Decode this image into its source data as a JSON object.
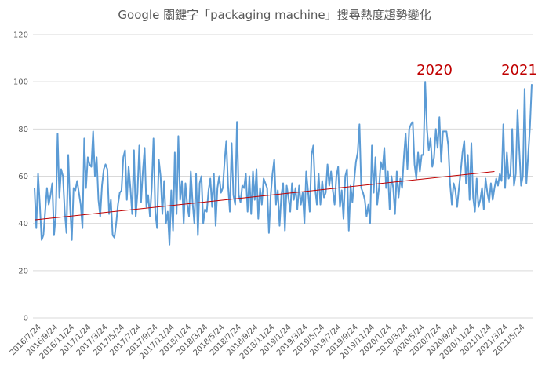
{
  "chart_data": {
    "type": "line",
    "title": "Google 關鍵字「packaging machine」搜尋熱度趨勢變化",
    "xlabel": "",
    "ylabel": "",
    "ylim": [
      0,
      120
    ],
    "yticks": [
      0,
      20,
      40,
      60,
      80,
      100,
      120
    ],
    "grid": true,
    "legend": "none",
    "colors": {
      "series": "#5b9bd5",
      "trend": "#c00000",
      "annotation": "#c00000"
    },
    "x_tick_labels": [
      "2016/7/24",
      "2016/9/24",
      "2016/11/24",
      "2017/1/24",
      "2017/3/24",
      "2017/5/24",
      "2017/7/24",
      "2017/9/24",
      "2017/11/24",
      "2018/1/24",
      "2018/3/24",
      "2018/5/24",
      "2018/7/24",
      "2018/9/24",
      "2018/11/24",
      "2019/1/24",
      "2019/3/24",
      "2019/5/24",
      "2019/7/24",
      "2019/9/24",
      "2019/11/24",
      "2020/1/24",
      "2020/3/24",
      "2020/5/24",
      "2020/7/24",
      "2020/9/24",
      "2020/11/24",
      "2021/1/24",
      "2021/3/24",
      "2021/5/24"
    ],
    "series": [
      {
        "name": "",
        "values": [
          55,
          38,
          61,
          48,
          33,
          35,
          45,
          55,
          48,
          52,
          57,
          35,
          44,
          78,
          51,
          63,
          60,
          45,
          36,
          69,
          48,
          33,
          55,
          54,
          58,
          53,
          48,
          38,
          76,
          55,
          68,
          65,
          64,
          79,
          60,
          68,
          50,
          43,
          56,
          63,
          65,
          63,
          44,
          50,
          35,
          34,
          40,
          48,
          53,
          54,
          68,
          71,
          50,
          64,
          55,
          44,
          71,
          43,
          53,
          73,
          49,
          62,
          72,
          47,
          52,
          43,
          55,
          76,
          45,
          38,
          67,
          60,
          44,
          58,
          40,
          45,
          31,
          54,
          37,
          70,
          44,
          77,
          50,
          58,
          40,
          57,
          48,
          43,
          62,
          49,
          40,
          61,
          35,
          57,
          60,
          40,
          46,
          45,
          54,
          59,
          47,
          61,
          39,
          55,
          60,
          53,
          55,
          66,
          75,
          56,
          45,
          74,
          52,
          48,
          83,
          52,
          49,
          56,
          55,
          61,
          45,
          60,
          44,
          62,
          50,
          63,
          42,
          55,
          48,
          59,
          57,
          55,
          36,
          52,
          61,
          67,
          48,
          54,
          39,
          52,
          57,
          37,
          56,
          51,
          45,
          57,
          50,
          55,
          46,
          56,
          48,
          53,
          40,
          62,
          54,
          45,
          69,
          73,
          55,
          48,
          61,
          48,
          58,
          51,
          53,
          65,
          56,
          62,
          54,
          48,
          60,
          64,
          47,
          54,
          42,
          60,
          63,
          37,
          56,
          49,
          58,
          66,
          70,
          82,
          55,
          53,
          50,
          43,
          48,
          40,
          73,
          53,
          68,
          48,
          55,
          66,
          63,
          72,
          55,
          62,
          46,
          60,
          55,
          44,
          62,
          51,
          59,
          55,
          68,
          78,
          63,
          80,
          82,
          83,
          65,
          59,
          70,
          62,
          69,
          69,
          100,
          80,
          71,
          76,
          64,
          68,
          80,
          72,
          85,
          66,
          79,
          79,
          79,
          73,
          57,
          48,
          57,
          54,
          47,
          55,
          62,
          70,
          75,
          57,
          69,
          50,
          74,
          51,
          45,
          59,
          47,
          50,
          55,
          46,
          59,
          53,
          49,
          57,
          50,
          55,
          59,
          56,
          61,
          58,
          82,
          55,
          70,
          59,
          61,
          80,
          56,
          61,
          88,
          71,
          56,
          60,
          97,
          57,
          69,
          81,
          99
        ]
      },
      {
        "name": "",
        "type": "trendline",
        "x": [
          0,
          259
        ],
        "values": [
          41.5,
          62
        ]
      }
    ],
    "annotations": [
      "2020",
      "2021"
    ]
  }
}
